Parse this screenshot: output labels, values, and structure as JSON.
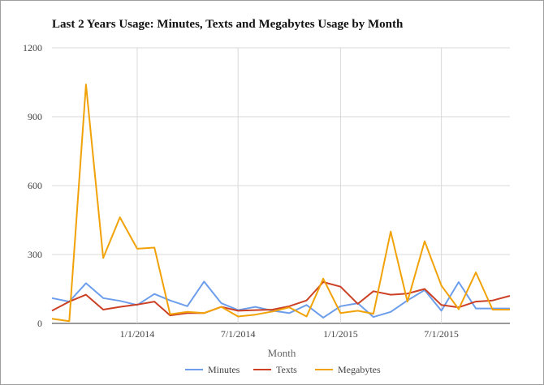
{
  "chart_data": {
    "type": "line",
    "title": "Last 2 Years Usage: Minutes, Texts and Megabytes Usage by Month",
    "xlabel": "Month",
    "ylabel": "",
    "ylim": [
      0,
      1200
    ],
    "yticks": [
      "0",
      "300",
      "600",
      "900",
      "1200"
    ],
    "xticks": [
      {
        "label": "1/1/2014",
        "date": "2014-01-01"
      },
      {
        "label": "7/1/2014",
        "date": "2014-07-01"
      },
      {
        "label": "1/1/2015",
        "date": "2015-01-01"
      },
      {
        "label": "7/1/2015",
        "date": "2015-07-01"
      }
    ],
    "x": [
      "2013-08-01",
      "2013-09-01",
      "2013-10-01",
      "2013-11-01",
      "2013-12-01",
      "2014-01-01",
      "2014-02-01",
      "2014-03-01",
      "2014-04-01",
      "2014-05-01",
      "2014-06-01",
      "2014-07-01",
      "2014-08-01",
      "2014-09-01",
      "2014-10-01",
      "2014-11-01",
      "2014-12-01",
      "2015-01-01",
      "2015-02-01",
      "2015-03-01",
      "2015-04-01",
      "2015-05-01",
      "2015-06-01",
      "2015-07-01",
      "2015-08-01",
      "2015-09-01",
      "2015-10-01",
      "2015-11-01"
    ],
    "xlim": [
      "2013-08-01",
      "2015-11-01"
    ],
    "grid": true,
    "legend_position": "bottom",
    "series": [
      {
        "name": "Minutes",
        "color": "#6d9eeb",
        "values": [
          110,
          95,
          175,
          110,
          98,
          80,
          128,
          100,
          75,
          182,
          88,
          58,
          72,
          55,
          45,
          80,
          25,
          75,
          88,
          28,
          50,
          100,
          145,
          55,
          180,
          65,
          65,
          65
        ]
      },
      {
        "name": "Texts",
        "color": "#cc4125",
        "values": [
          55,
          95,
          125,
          60,
          72,
          82,
          95,
          35,
          45,
          45,
          72,
          55,
          58,
          60,
          75,
          100,
          180,
          160,
          85,
          140,
          125,
          130,
          150,
          80,
          70,
          95,
          100,
          120
        ]
      },
      {
        "name": "Megabytes",
        "color": "#f1a208",
        "values": [
          20,
          10,
          1040,
          285,
          462,
          325,
          330,
          40,
          50,
          45,
          72,
          30,
          38,
          52,
          70,
          30,
          195,
          45,
          55,
          42,
          400,
          95,
          358,
          165,
          62,
          222,
          60,
          60
        ]
      }
    ]
  }
}
